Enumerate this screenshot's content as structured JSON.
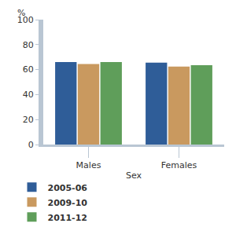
{
  "chart_data": {
    "type": "bar",
    "y_label": "%",
    "x_label": "Sex",
    "categories": [
      "Males",
      "Females"
    ],
    "series": [
      {
        "name": "2005-06",
        "color": "#2f5d98",
        "values": [
          66,
          65.5
        ]
      },
      {
        "name": "2009-10",
        "color": "#c9995f",
        "values": [
          64.5,
          62.5
        ]
      },
      {
        "name": "2011-12",
        "color": "#5f9e5a",
        "values": [
          66,
          63.5
        ]
      }
    ],
    "ylim": [
      0,
      100
    ],
    "yticks": [
      0,
      20,
      40,
      60,
      80,
      100
    ],
    "grid": false,
    "legend": "bottom"
  }
}
